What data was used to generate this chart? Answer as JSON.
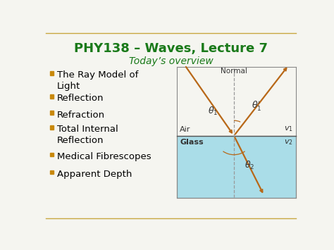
{
  "title": "PHY138 – Waves, Lecture 7",
  "subtitle": "Today’s overview",
  "title_color": "#1a7a1a",
  "subtitle_color": "#1a7a1a",
  "bullet_color": "#c8880a",
  "text_color": "#000000",
  "bg_color": "#f5f5f0",
  "border_color": "#c8a840",
  "bullet_items": [
    "The Ray Model of\nLight",
    "Reflection",
    "Refraction",
    "Total Internal\nReflection",
    "Medical Fibrescopes",
    "Apparent Depth"
  ],
  "diagram": {
    "air_label": "Air",
    "glass_label": "Glass",
    "normal_label": "Normal",
    "v1_label": "$v_1$",
    "v2_label": "$v_2$",
    "theta1_label": "$\\theta_1$",
    "theta1r_label": "$\\theta_1'$",
    "theta2_label": "$\\theta_2$",
    "ray_color": "#b86818",
    "glass_top_color": "#c8eaf0",
    "glass_bot_color": "#88ccd8",
    "dashed_color": "#999999",
    "text_color": "#333333"
  }
}
